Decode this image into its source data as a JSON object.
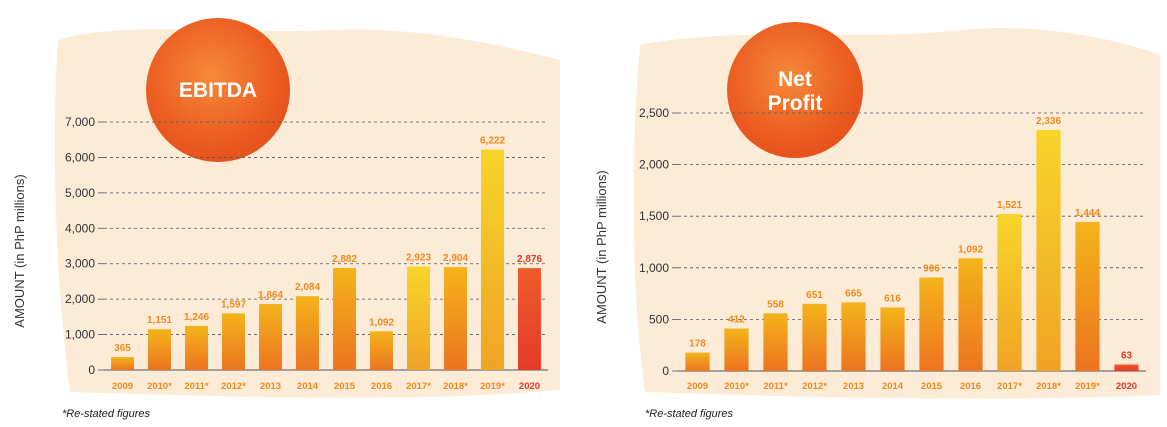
{
  "colors": {
    "bar_gradient_top": "#f4b41a",
    "bar_gradient_bottom": "#ec7420",
    "highlight_top": "#f7d52a",
    "highlight_bottom": "#f0a326",
    "bar_2020": "#e8452a",
    "label_orange": "#ef8a1e",
    "label_red": "#e23a2a",
    "badge": "#ed6a24",
    "wash": "#fbe7cf"
  },
  "chart_data": [
    {
      "type": "bar",
      "title": "EBITDA",
      "ylabel": "AMOUNT (in PhP millions)",
      "xlabel": "",
      "ylim": [
        0,
        7000
      ],
      "yticks": [
        0,
        1000,
        2000,
        3000,
        4000,
        5000,
        6000,
        7000
      ],
      "ytick_labels": [
        "0",
        "1,000",
        "2,000",
        "3,000",
        "4,000",
        "5,000",
        "6,000",
        "7,000"
      ],
      "grid": true,
      "categories": [
        "2009",
        "2010*",
        "2011*",
        "2012*",
        "2013",
        "2014",
        "2015",
        "2016",
        "2017*",
        "2018*",
        "2019*",
        "2020"
      ],
      "values": [
        365,
        1151,
        1246,
        1597,
        1864,
        2084,
        2882,
        1092,
        2923,
        2904,
        6222,
        2876
      ],
      "value_labels": [
        "365",
        "1,151",
        "1,246",
        "1,597",
        "1,864",
        "2,084",
        "2,882",
        "1,092",
        "2,923",
        "2,904",
        "6,222",
        "2,876"
      ],
      "note": "*Re-stated figures"
    },
    {
      "type": "bar",
      "title": "Net Profit",
      "ylabel": "AMOUNT (in PhP millions)",
      "xlabel": "",
      "ylim": [
        0,
        2500
      ],
      "yticks": [
        0,
        500,
        1000,
        1500,
        2000,
        2500
      ],
      "ytick_labels": [
        "0",
        "500",
        "1,000",
        "1,500",
        "2,000",
        "2,500"
      ],
      "grid": true,
      "categories": [
        "2009",
        "2010*",
        "2011*",
        "2012*",
        "2013",
        "2014",
        "2015",
        "2016",
        "2017*",
        "2018*",
        "2019*",
        "2020"
      ],
      "values": [
        178,
        412,
        558,
        651,
        665,
        616,
        906,
        1092,
        1521,
        2336,
        1444,
        63
      ],
      "value_labels": [
        "178",
        "412",
        "558",
        "651",
        "665",
        "616",
        "906",
        "1,092",
        "1,521",
        "2,336",
        "1,444",
        "63"
      ],
      "note": "*Re-stated figures"
    }
  ]
}
